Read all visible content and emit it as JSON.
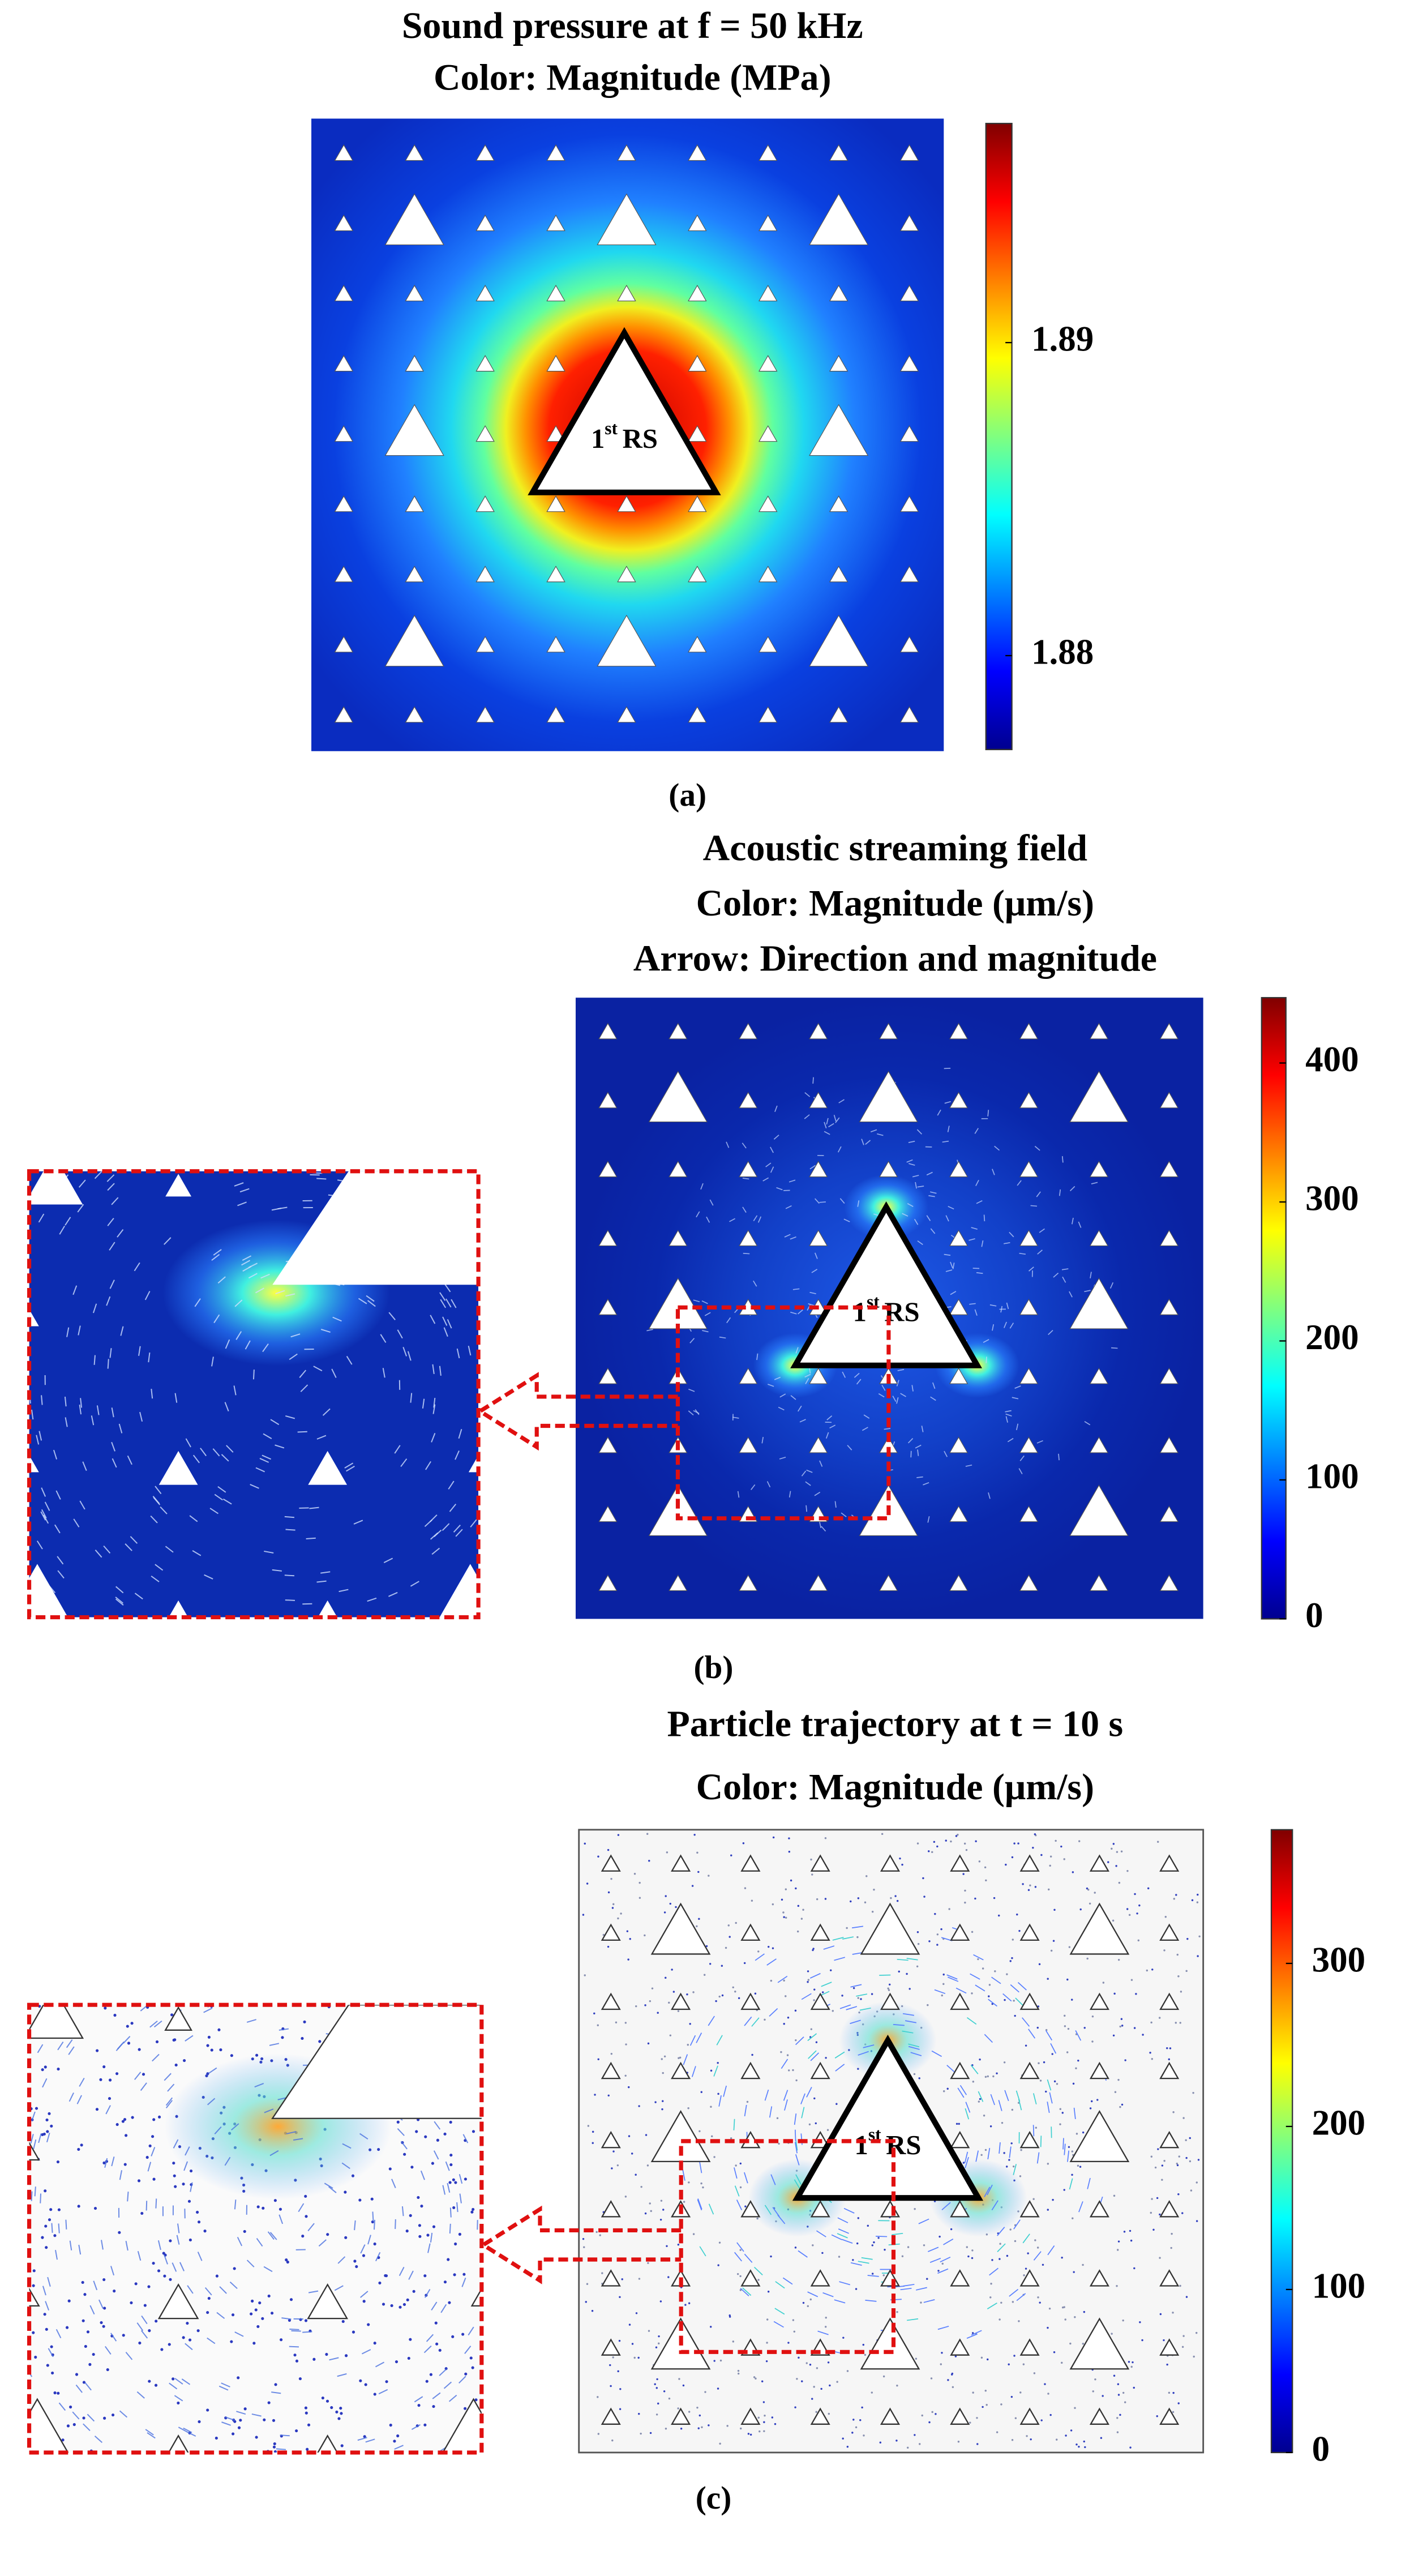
{
  "panels": [
    {
      "label": "(a)",
      "title_lines": [
        "Sound pressure at f = 50 kHz",
        "Color: Magnitude (MPa)"
      ],
      "center_label": {
        "number": "1",
        "suffix": "st",
        "name": "RS"
      },
      "colorbar": {
        "lim": [
          1.877,
          1.897
        ],
        "ticks": [
          1.88,
          1.89
        ]
      }
    },
    {
      "label": "(b)",
      "title_lines": [
        "Acoustic streaming field",
        "Color: Magnitude (μm/s)",
        "Arrow: Direction and magnitude"
      ],
      "center_label": {
        "number": "1",
        "suffix": "st",
        "name": "RS"
      },
      "colorbar": {
        "lim": [
          0,
          447
        ],
        "ticks": [
          0,
          100,
          200,
          300,
          400
        ]
      }
    },
    {
      "label": "(c)",
      "title_lines": [
        "Particle trajectory at t = 10 s",
        "Color: Magnitude (μm/s)"
      ],
      "center_label": {
        "number": "1",
        "suffix": "st",
        "name": "RS"
      },
      "colorbar": {
        "lim": [
          0,
          382
        ],
        "ticks": [
          0,
          100,
          200,
          300
        ]
      }
    }
  ]
}
